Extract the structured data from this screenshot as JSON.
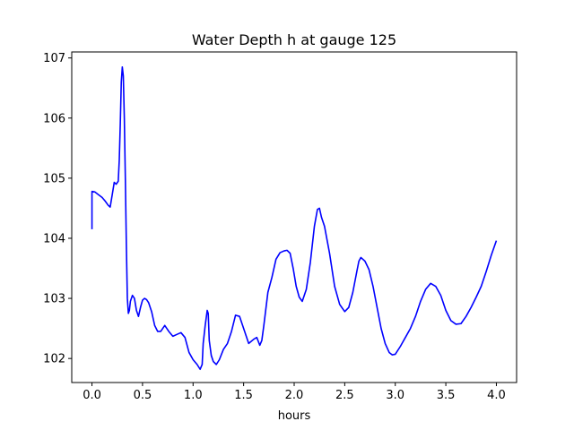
{
  "chart_data": {
    "type": "line",
    "title": "Water Depth h at gauge 125",
    "xlabel": "hours",
    "ylabel": "",
    "xlim": [
      -0.2,
      4.2
    ],
    "ylim": [
      101.6,
      107.1
    ],
    "xticks": [
      0.0,
      0.5,
      1.0,
      1.5,
      2.0,
      2.5,
      3.0,
      3.5,
      4.0
    ],
    "xtick_labels": [
      "0.0",
      "0.5",
      "1.0",
      "1.5",
      "2.0",
      "2.5",
      "3.0",
      "3.5",
      "4.0"
    ],
    "yticks": [
      102,
      103,
      104,
      105,
      106,
      107
    ],
    "ytick_labels": [
      "102",
      "103",
      "104",
      "105",
      "106",
      "107"
    ],
    "grid": false,
    "series": [
      {
        "color": "#0000ff",
        "x": [
          0.0,
          0.0,
          0.0,
          0.03,
          0.06,
          0.1,
          0.13,
          0.16,
          0.18,
          0.2,
          0.22,
          0.24,
          0.26,
          0.27,
          0.28,
          0.29,
          0.3,
          0.31,
          0.32,
          0.33,
          0.34,
          0.35,
          0.36,
          0.37,
          0.38,
          0.4,
          0.42,
          0.44,
          0.46,
          0.48,
          0.5,
          0.52,
          0.54,
          0.56,
          0.59,
          0.62,
          0.65,
          0.68,
          0.72,
          0.76,
          0.8,
          0.84,
          0.88,
          0.92,
          0.96,
          1.0,
          1.04,
          1.07,
          1.09,
          1.1,
          1.12,
          1.14,
          1.15,
          1.16,
          1.18,
          1.2,
          1.23,
          1.26,
          1.3,
          1.34,
          1.38,
          1.42,
          1.46,
          1.5,
          1.55,
          1.6,
          1.63,
          1.66,
          1.68,
          1.7,
          1.74,
          1.78,
          1.82,
          1.86,
          1.9,
          1.93,
          1.96,
          1.99,
          2.02,
          2.05,
          2.08,
          2.12,
          2.16,
          2.2,
          2.23,
          2.25,
          2.27,
          2.3,
          2.35,
          2.4,
          2.45,
          2.5,
          2.54,
          2.58,
          2.62,
          2.64,
          2.66,
          2.7,
          2.74,
          2.78,
          2.82,
          2.86,
          2.9,
          2.94,
          2.97,
          3.0,
          3.05,
          3.1,
          3.15,
          3.2,
          3.25,
          3.3,
          3.35,
          3.4,
          3.45,
          3.5,
          3.55,
          3.6,
          3.65,
          3.7,
          3.75,
          3.8,
          3.85,
          3.9,
          3.95,
          4.0
        ],
        "y": [
          104.15,
          104.5,
          104.78,
          104.77,
          104.73,
          104.68,
          104.62,
          104.55,
          104.52,
          104.72,
          104.93,
          104.9,
          104.95,
          105.3,
          105.9,
          106.6,
          106.85,
          106.7,
          106.0,
          105.0,
          103.9,
          103.0,
          102.75,
          102.8,
          102.95,
          103.05,
          103.0,
          102.8,
          102.7,
          102.85,
          102.97,
          103.0,
          102.98,
          102.93,
          102.78,
          102.55,
          102.45,
          102.45,
          102.55,
          102.45,
          102.37,
          102.4,
          102.43,
          102.35,
          102.1,
          101.98,
          101.9,
          101.82,
          101.9,
          102.25,
          102.55,
          102.8,
          102.75,
          102.3,
          102.05,
          101.95,
          101.9,
          101.98,
          102.15,
          102.25,
          102.45,
          102.72,
          102.7,
          102.5,
          102.25,
          102.32,
          102.35,
          102.22,
          102.3,
          102.55,
          103.1,
          103.35,
          103.65,
          103.76,
          103.79,
          103.8,
          103.75,
          103.5,
          103.2,
          103.02,
          102.95,
          103.15,
          103.6,
          104.2,
          104.48,
          104.5,
          104.35,
          104.2,
          103.75,
          103.2,
          102.9,
          102.78,
          102.85,
          103.1,
          103.45,
          103.62,
          103.68,
          103.62,
          103.48,
          103.2,
          102.85,
          102.5,
          102.25,
          102.1,
          102.06,
          102.07,
          102.2,
          102.35,
          102.5,
          102.7,
          102.95,
          103.15,
          103.25,
          103.2,
          103.05,
          102.8,
          102.63,
          102.57,
          102.58,
          102.7,
          102.85,
          103.02,
          103.2,
          103.45,
          103.72,
          103.96
        ]
      }
    ]
  }
}
